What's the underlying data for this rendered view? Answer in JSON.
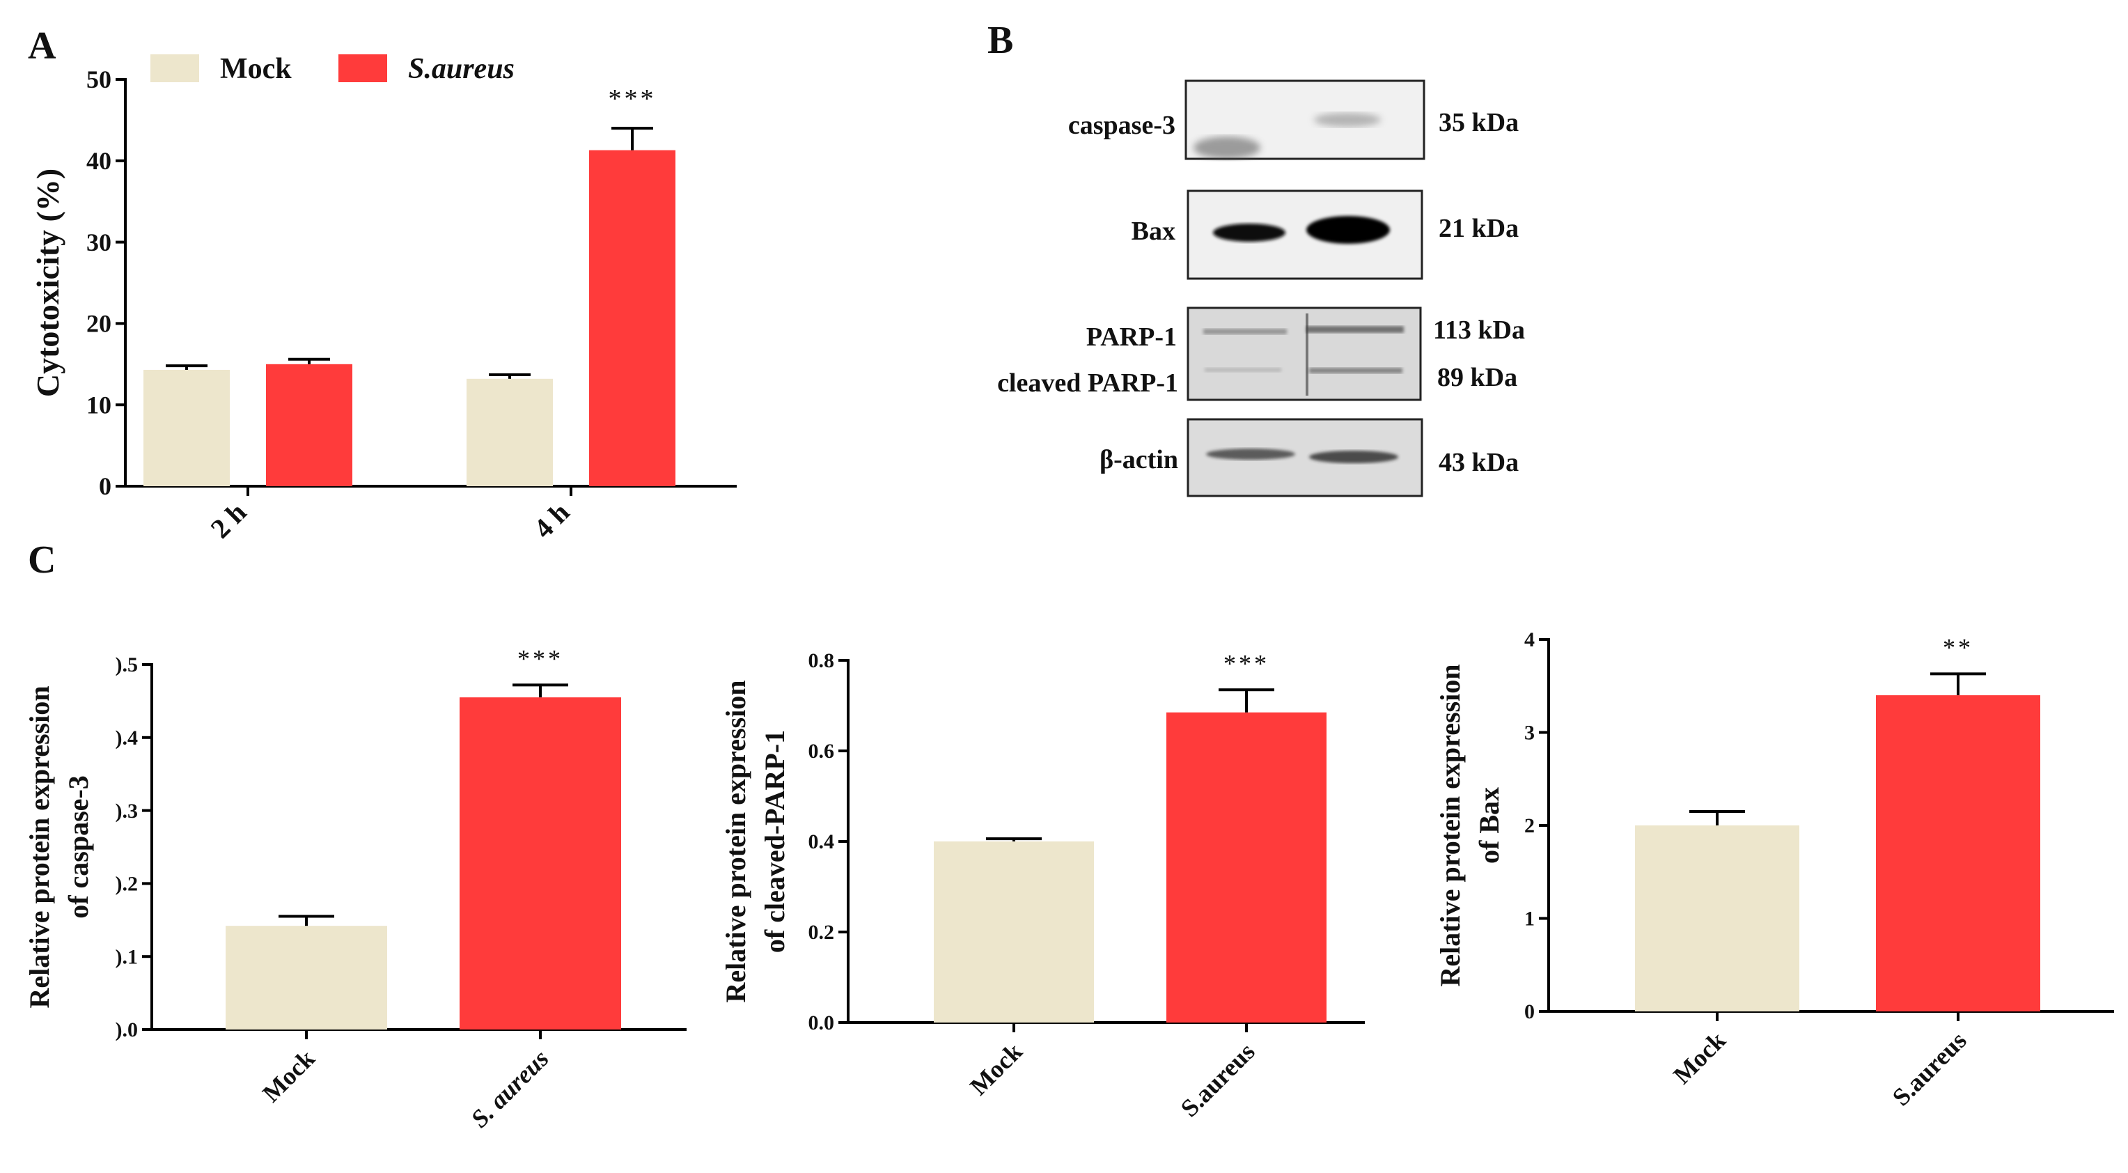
{
  "colors": {
    "mock": "#EDE6CC",
    "treat": "#FF3B3B",
    "axis": "#000000"
  },
  "panel_labels": {
    "a": "A",
    "b": "B",
    "c": "C"
  },
  "chart_data": [
    {
      "id": "A",
      "type": "bar",
      "title": "",
      "xlabel": "",
      "ylabel": "Cytotoxicity (%)",
      "ylim": [
        0,
        50
      ],
      "yticks": [
        "0",
        "10",
        "20",
        "30",
        "40",
        "50"
      ],
      "categories": [
        "2 h",
        "4 h"
      ],
      "series": [
        {
          "name": "Mock",
          "values": [
            14.3,
            13.2
          ],
          "errors": [
            0.5,
            0.5
          ]
        },
        {
          "name": "S.aureus",
          "values": [
            15.0,
            41.3
          ],
          "errors": [
            0.6,
            2.7
          ]
        }
      ],
      "significance": [
        "",
        "***"
      ],
      "legend": {
        "position": "top",
        "entries": [
          "Mock",
          "S.aureus"
        ]
      }
    },
    {
      "id": "C1",
      "type": "bar",
      "ylabel_line1": "Relative protein  expression",
      "ylabel_line2": "of caspase-3",
      "ylim": [
        0,
        0.5
      ],
      "yticks": [
        ").0",
        ").1",
        ").2",
        ").3",
        ").4",
        ").5"
      ],
      "categories": [
        "Mock",
        "S. aureus"
      ],
      "values": [
        0.142,
        0.455
      ],
      "errors": [
        0.013,
        0.017
      ],
      "significance": [
        "",
        "***"
      ]
    },
    {
      "id": "C2",
      "type": "bar",
      "ylabel_line1": "Relative protein  expression",
      "ylabel_line2": "of cleaved-PARP-1",
      "ylim": [
        0,
        0.8
      ],
      "yticks": [
        "0.0",
        "0.2",
        "0.4",
        "0.6",
        "0.8"
      ],
      "categories": [
        "Mock",
        "S.aureus"
      ],
      "values": [
        0.4,
        0.685
      ],
      "errors": [
        0.006,
        0.05
      ],
      "significance": [
        "",
        "***"
      ]
    },
    {
      "id": "C3",
      "type": "bar",
      "ylabel_line1": "Relative protein  expression",
      "ylabel_line2": "of Bax",
      "ylim": [
        0,
        4
      ],
      "yticks": [
        "0",
        "1",
        "2",
        "3",
        "4"
      ],
      "categories": [
        "Mock",
        "S.aureus"
      ],
      "values": [
        2.0,
        3.4
      ],
      "errors": [
        0.15,
        0.23
      ],
      "significance": [
        "",
        "**"
      ]
    }
  ],
  "blot": {
    "rows": [
      {
        "label": "caspase-3",
        "kda": "35 kDa"
      },
      {
        "label": "Bax",
        "kda": "21 kDa"
      },
      {
        "label": "PARP-1",
        "kda": "113 kDa"
      },
      {
        "label": "cleaved PARP-1",
        "kda": "89 kDa"
      },
      {
        "label": "β-actin",
        "kda": "43 kDa"
      }
    ]
  }
}
